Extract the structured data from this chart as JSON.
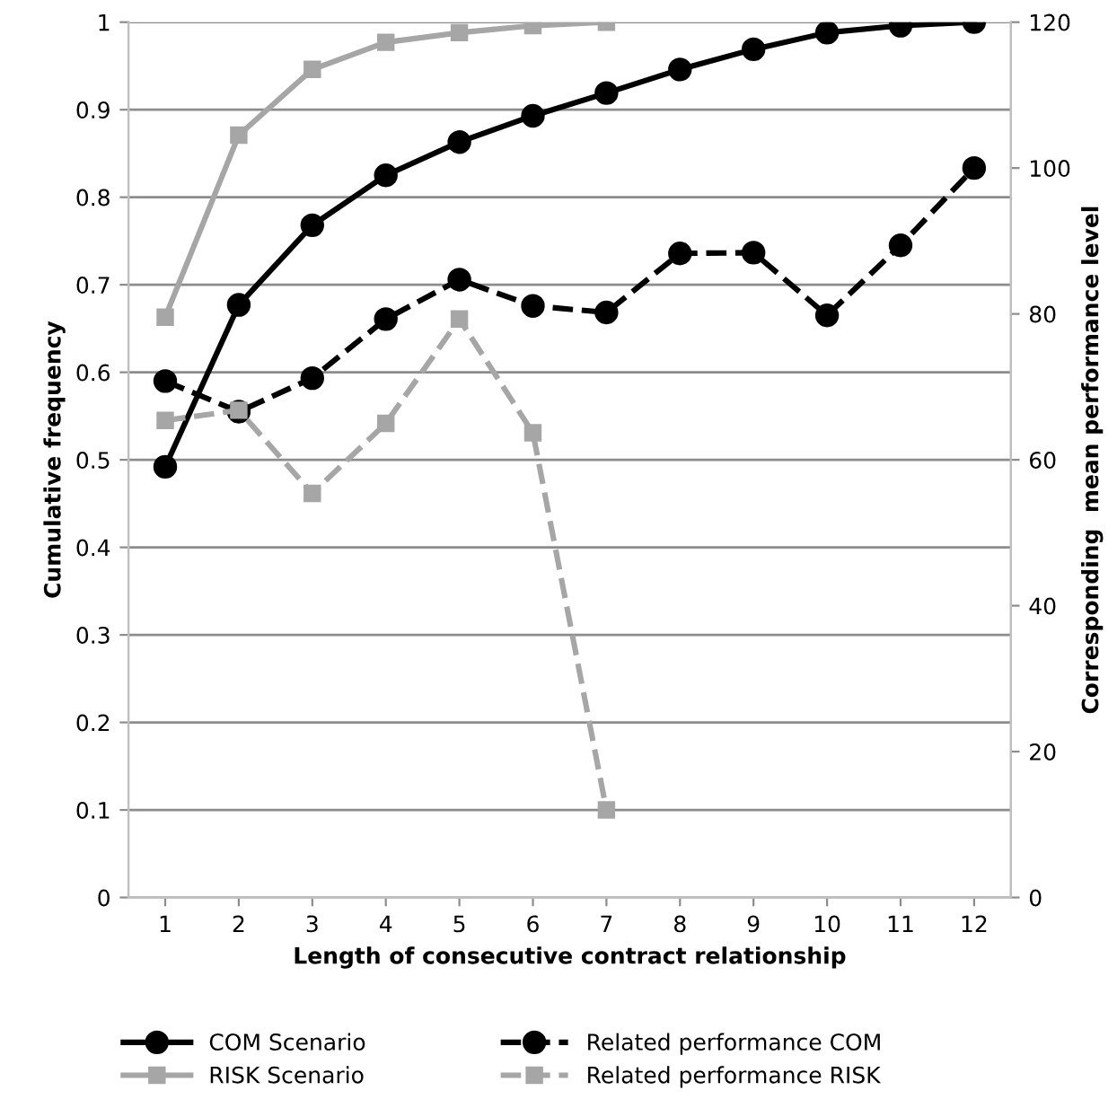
{
  "chart_data": {
    "type": "line",
    "xlabel": "Length of consecutive contract relationship",
    "ylabel": "Cumulative frequency",
    "y2label": "Corresponding  mean performance level",
    "categories": [
      "1",
      "2",
      "3",
      "4",
      "5",
      "6",
      "7",
      "8",
      "9",
      "10",
      "11",
      "12"
    ],
    "series": [
      {
        "name": "COM Scenario",
        "color": "#000000",
        "marker": "circle",
        "line_style": "solid",
        "values": [
          0.492,
          0.677,
          0.768,
          0.825,
          0.863,
          0.893,
          0.919,
          0.946,
          0.969,
          0.988,
          0.996,
          1.0
        ]
      },
      {
        "name": "RISK Scenario",
        "color": "#a6a6a6",
        "marker": "square",
        "line_style": "solid",
        "values": [
          0.663,
          0.871,
          0.946,
          0.977,
          0.988,
          0.996,
          1.0,
          null,
          null,
          null,
          null,
          null
        ]
      },
      {
        "name": "Related performance COM",
        "color": "#000000",
        "marker": "circle",
        "line_style": "dashed",
        "axis": "y2",
        "values": [
          70.8,
          66.6,
          71.2,
          79.3,
          84.7,
          81.1,
          80.2,
          88.3,
          88.4,
          79.8,
          89.4,
          100
        ]
      },
      {
        "name": "Related performance RISK",
        "color": "#a6a6a6",
        "marker": "square",
        "line_style": "dashed",
        "axis": "y2",
        "values": [
          65.4,
          66.8,
          55.4,
          65,
          79.3,
          63.7,
          12,
          null,
          null,
          null,
          null,
          null
        ]
      }
    ],
    "ylim": [
      0,
      1
    ],
    "yticks": [
      0,
      0.1,
      0.2,
      0.3,
      0.4,
      0.5,
      0.6,
      0.7,
      0.8,
      0.9,
      1
    ],
    "y2lim": [
      0,
      120
    ],
    "y2ticks": [
      0,
      20,
      40,
      60,
      80,
      100,
      120
    ],
    "grid": "y",
    "legend": "bottom"
  }
}
